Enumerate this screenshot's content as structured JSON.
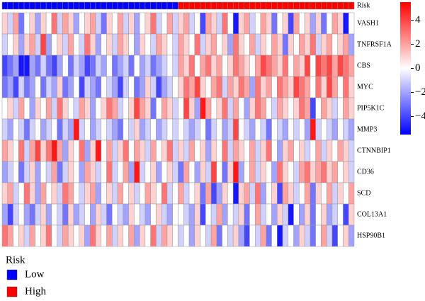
{
  "chart_data": {
    "type": "heatmap",
    "rows": [
      "VASH1",
      "TNFRSF1A",
      "CBS",
      "MYC",
      "PIP5K1C",
      "MMP3",
      "CTNNBIP1",
      "CD36",
      "SCD",
      "COL13A1",
      "HSP90B1"
    ],
    "values": [
      [
        1,
        -1,
        2,
        -3,
        0,
        1,
        -2,
        1,
        0,
        3,
        -1,
        2,
        1,
        -2,
        0,
        1,
        2,
        -1,
        -3,
        1,
        0,
        2,
        -1,
        1,
        -2,
        0,
        1,
        3,
        -1,
        0,
        2,
        -1,
        1,
        2,
        -1,
        0,
        -4,
        2,
        1,
        -1,
        3,
        0,
        -5,
        1,
        2,
        -1,
        0,
        2,
        1,
        -3,
        0,
        1,
        -4,
        2,
        0,
        1,
        -2,
        1,
        -3,
        0,
        2,
        1,
        -5,
        0
      ],
      [
        -1,
        0,
        1,
        -2,
        1,
        2,
        -1,
        4,
        -2,
        0,
        1,
        -1,
        2,
        0,
        -1,
        3,
        1,
        -2,
        0,
        1,
        -1,
        2,
        1,
        0,
        -2,
        1,
        0,
        -1,
        2,
        1,
        0,
        -1,
        2,
        1,
        0,
        3,
        -1,
        1,
        2,
        0,
        1,
        -2,
        3,
        1,
        0,
        2,
        -1,
        1,
        0,
        2,
        1,
        -3,
        1,
        0,
        2,
        1,
        3,
        -1,
        1,
        2,
        0,
        1,
        2,
        -2
      ],
      [
        -4,
        -3,
        -2,
        -5,
        -5,
        -2,
        -3,
        -1,
        -3,
        -4,
        -2,
        0,
        -3,
        -1,
        -2,
        -4,
        -3,
        -1,
        -2,
        0,
        -3,
        -2,
        -1,
        -3,
        0,
        -2,
        -1,
        -3,
        -2,
        -1,
        0,
        -1,
        2,
        1,
        3,
        0,
        2,
        3,
        1,
        2,
        0,
        1,
        3,
        2,
        1,
        0,
        2,
        4,
        3,
        2,
        1,
        3,
        0,
        2,
        1,
        4,
        0,
        4,
        3,
        4,
        2,
        4,
        3,
        2
      ],
      [
        -3,
        -2,
        -4,
        -1,
        -3,
        -2,
        0,
        -3,
        -1,
        -2,
        1,
        -3,
        -2,
        0,
        -4,
        -1,
        -2,
        -3,
        0,
        -1,
        -2,
        -4,
        -1,
        0,
        -3,
        -2,
        1,
        -1,
        -4,
        -2,
        -1,
        0,
        1,
        3,
        2,
        4,
        1,
        0,
        2,
        3,
        -1,
        2,
        1,
        3,
        2,
        -2,
        3,
        1,
        2,
        0,
        3,
        2,
        1,
        4,
        3,
        2,
        0,
        3,
        1,
        4,
        2,
        0,
        3,
        1
      ],
      [
        0,
        1,
        -1,
        2,
        0,
        -2,
        1,
        0,
        2,
        -1,
        3,
        1,
        0,
        -1,
        2,
        1,
        -2,
        0,
        1,
        3,
        2,
        -1,
        0,
        1,
        4,
        2,
        1,
        -3,
        0,
        2,
        1,
        -1,
        0,
        4,
        1,
        -2,
        5,
        2,
        0,
        1,
        3,
        -1,
        2,
        0,
        -2,
        1,
        3,
        2,
        0,
        -1,
        2,
        1,
        0,
        1,
        3,
        2,
        -4,
        0,
        2,
        1,
        -1,
        0,
        2,
        1
      ],
      [
        -1,
        -2,
        0,
        -1,
        -3,
        -1,
        0,
        -2,
        -1,
        0,
        -3,
        -1,
        -2,
        5,
        -1,
        0,
        -2,
        -1,
        0,
        -1,
        -2,
        -3,
        0,
        -1,
        1,
        -2,
        -1,
        0,
        -2,
        -1,
        0,
        -1,
        0,
        -1,
        -2,
        -1,
        0,
        -3,
        -1,
        0,
        -2,
        -1,
        4,
        0,
        -1,
        -2,
        0,
        -1,
        -3,
        0,
        -1,
        -2,
        0,
        -1,
        0,
        -2,
        5,
        -1,
        0,
        -1,
        -2,
        0,
        -1,
        -2
      ],
      [
        2,
        1,
        0,
        3,
        -1,
        2,
        4,
        1,
        3,
        5,
        2,
        -2,
        1,
        0,
        3,
        -2,
        1,
        5,
        0,
        2,
        -1,
        1,
        3,
        0,
        2,
        1,
        -1,
        2,
        0,
        1,
        3,
        -1,
        1,
        -1,
        2,
        0,
        1,
        -2,
        1,
        0,
        3,
        -1,
        2,
        1,
        0,
        2,
        -1,
        1,
        3,
        0,
        -2,
        1,
        2,
        0,
        1,
        -1,
        0,
        2,
        -1,
        1,
        0,
        2,
        1,
        -1
      ],
      [
        -2,
        -1,
        0,
        -3,
        -1,
        1,
        -2,
        0,
        -1,
        2,
        -3,
        -1,
        1,
        0,
        -2,
        2,
        1,
        -1,
        0,
        3,
        -1,
        0,
        2,
        -2,
        5,
        -1,
        0,
        1,
        -2,
        0,
        1,
        -1,
        -3,
        2,
        0,
        -2,
        1,
        -1,
        4,
        0,
        -3,
        1,
        5,
        -2,
        0,
        2,
        -1,
        1,
        0,
        -2,
        3,
        1,
        0,
        -1,
        2,
        3,
        1,
        2,
        3,
        1,
        2,
        0,
        1,
        -1
      ],
      [
        1,
        2,
        -1,
        0,
        3,
        1,
        -2,
        2,
        0,
        1,
        -1,
        3,
        2,
        0,
        -1,
        1,
        2,
        -2,
        0,
        1,
        -1,
        2,
        0,
        1,
        -1,
        0,
        2,
        1,
        0,
        3,
        -1,
        0,
        2,
        -1,
        0,
        1,
        -3,
        2,
        -4,
        -2,
        1,
        0,
        -5,
        1,
        2,
        -1,
        3,
        -2,
        0,
        1,
        -4,
        2,
        1,
        -1,
        0,
        2,
        -3,
        1,
        0,
        2,
        -1,
        1,
        0,
        2
      ],
      [
        -2,
        -4,
        -1,
        0,
        -2,
        -3,
        -1,
        1,
        -2,
        0,
        -1,
        -3,
        1,
        -2,
        -1,
        0,
        -2,
        1,
        -1,
        -3,
        0,
        -1,
        -2,
        1,
        0,
        -1,
        -2,
        0,
        1,
        -1,
        -2,
        0,
        0,
        -1,
        -2,
        1,
        -4,
        0,
        -1,
        2,
        -2,
        0,
        -1,
        1,
        -3,
        0,
        2,
        -1,
        0,
        -2,
        1,
        -1,
        -5,
        0,
        -2,
        1,
        -3,
        0,
        1,
        -2,
        -1,
        0,
        -4,
        1
      ],
      [
        3,
        2,
        0,
        1,
        -1,
        2,
        0,
        1,
        3,
        0,
        -1,
        2,
        1,
        0,
        1,
        -2,
        3,
        1,
        0,
        2,
        -1,
        1,
        0,
        2,
        -2,
        1,
        0,
        3,
        -1,
        2,
        1,
        0,
        -1,
        0,
        -2,
        1,
        0,
        -1,
        2,
        -3,
        0,
        -1,
        1,
        -2,
        -4,
        0,
        -1,
        2,
        -3,
        0,
        -5,
        -1,
        0,
        -2,
        1,
        -1,
        -3,
        0,
        2,
        -1,
        -4,
        0,
        1,
        -2
      ]
    ],
    "low_color": "#0000ff",
    "mid_color": "#ffffff",
    "high_color": "#ff0000",
    "colorbar_lim": [
      -5.5,
      5.5
    ],
    "colorbar_ticks": [
      4,
      2,
      0,
      {
        "value": -2,
        "label": "−2"
      },
      {
        "value": -4,
        "label": "−4"
      }
    ],
    "annotation": {
      "name": "Risk",
      "levels": [
        {
          "name": "Low",
          "color": "#0000ff",
          "count": 32
        },
        {
          "name": "High",
          "color": "#ff0000",
          "count": 32
        }
      ]
    }
  }
}
